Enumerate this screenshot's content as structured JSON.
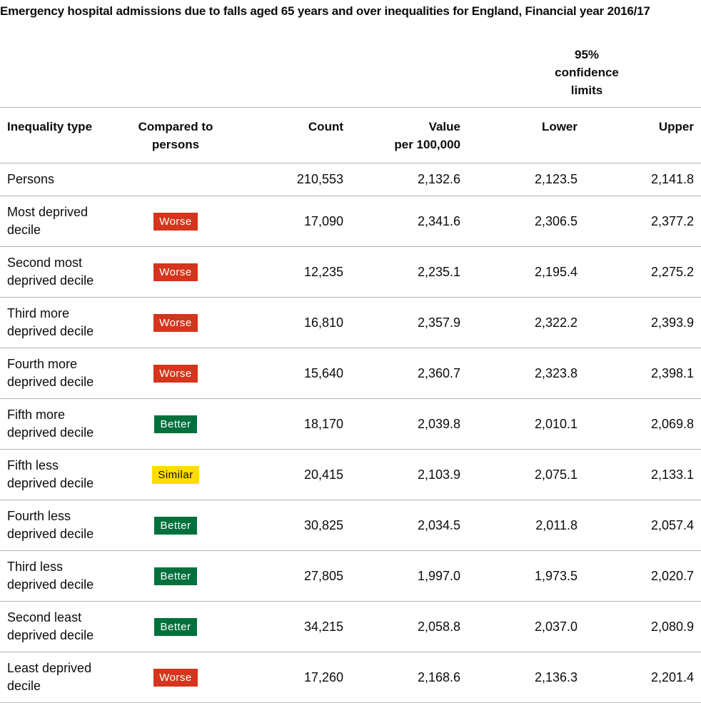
{
  "caption": "Emergency hospital admissions due to falls aged 65 years and over inequalities for England, Financial year 2016/17",
  "ci_group": {
    "line1": "95%",
    "line2": "confidence",
    "line3": "limits"
  },
  "headers": {
    "inequality_type": "Inequality type",
    "compared_line1": "Compared to",
    "compared_line2": "persons",
    "count": "Count",
    "value_line1": "Value",
    "value_line2": "per 100,000",
    "lower": "Lower",
    "upper": "Upper"
  },
  "colors": {
    "worse": "#d4351c",
    "better": "#00703c",
    "similar": "#ffdd00"
  },
  "rows": [
    {
      "label_line1": "Persons",
      "label_line2": "",
      "compared": "",
      "compared_class": "none",
      "count": "210,553",
      "value": "2,132.6",
      "lower": "2,123.5",
      "upper": "2,141.8"
    },
    {
      "label_line1": "Most deprived",
      "label_line2": "decile",
      "compared": "Worse",
      "compared_class": "worse",
      "count": "17,090",
      "value": "2,341.6",
      "lower": "2,306.5",
      "upper": "2,377.2"
    },
    {
      "label_line1": "Second most",
      "label_line2": "deprived decile",
      "compared": "Worse",
      "compared_class": "worse",
      "count": "12,235",
      "value": "2,235.1",
      "lower": "2,195.4",
      "upper": "2,275.2"
    },
    {
      "label_line1": "Third more",
      "label_line2": "deprived decile",
      "compared": "Worse",
      "compared_class": "worse",
      "count": "16,810",
      "value": "2,357.9",
      "lower": "2,322.2",
      "upper": "2,393.9"
    },
    {
      "label_line1": "Fourth more",
      "label_line2": "deprived decile",
      "compared": "Worse",
      "compared_class": "worse",
      "count": "15,640",
      "value": "2,360.7",
      "lower": "2,323.8",
      "upper": "2,398.1"
    },
    {
      "label_line1": "Fifth more",
      "label_line2": "deprived decile",
      "compared": "Better",
      "compared_class": "better",
      "count": "18,170",
      "value": "2,039.8",
      "lower": "2,010.1",
      "upper": "2,069.8"
    },
    {
      "label_line1": "Fifth less",
      "label_line2": "deprived decile",
      "compared": "Similar",
      "compared_class": "similar",
      "count": "20,415",
      "value": "2,103.9",
      "lower": "2,075.1",
      "upper": "2,133.1"
    },
    {
      "label_line1": "Fourth less",
      "label_line2": "deprived decile",
      "compared": "Better",
      "compared_class": "better",
      "count": "30,825",
      "value": "2,034.5",
      "lower": "2,011.8",
      "upper": "2,057.4"
    },
    {
      "label_line1": "Third less",
      "label_line2": "deprived decile",
      "compared": "Better",
      "compared_class": "better",
      "count": "27,805",
      "value": "1,997.0",
      "lower": "1,973.5",
      "upper": "2,020.7"
    },
    {
      "label_line1": "Second least",
      "label_line2": "deprived decile",
      "compared": "Better",
      "compared_class": "better",
      "count": "34,215",
      "value": "2,058.8",
      "lower": "2,037.0",
      "upper": "2,080.9"
    },
    {
      "label_line1": "Least deprived",
      "label_line2": "decile",
      "compared": "Worse",
      "compared_class": "worse",
      "count": "17,260",
      "value": "2,168.6",
      "lower": "2,136.3",
      "upper": "2,201.4"
    }
  ]
}
